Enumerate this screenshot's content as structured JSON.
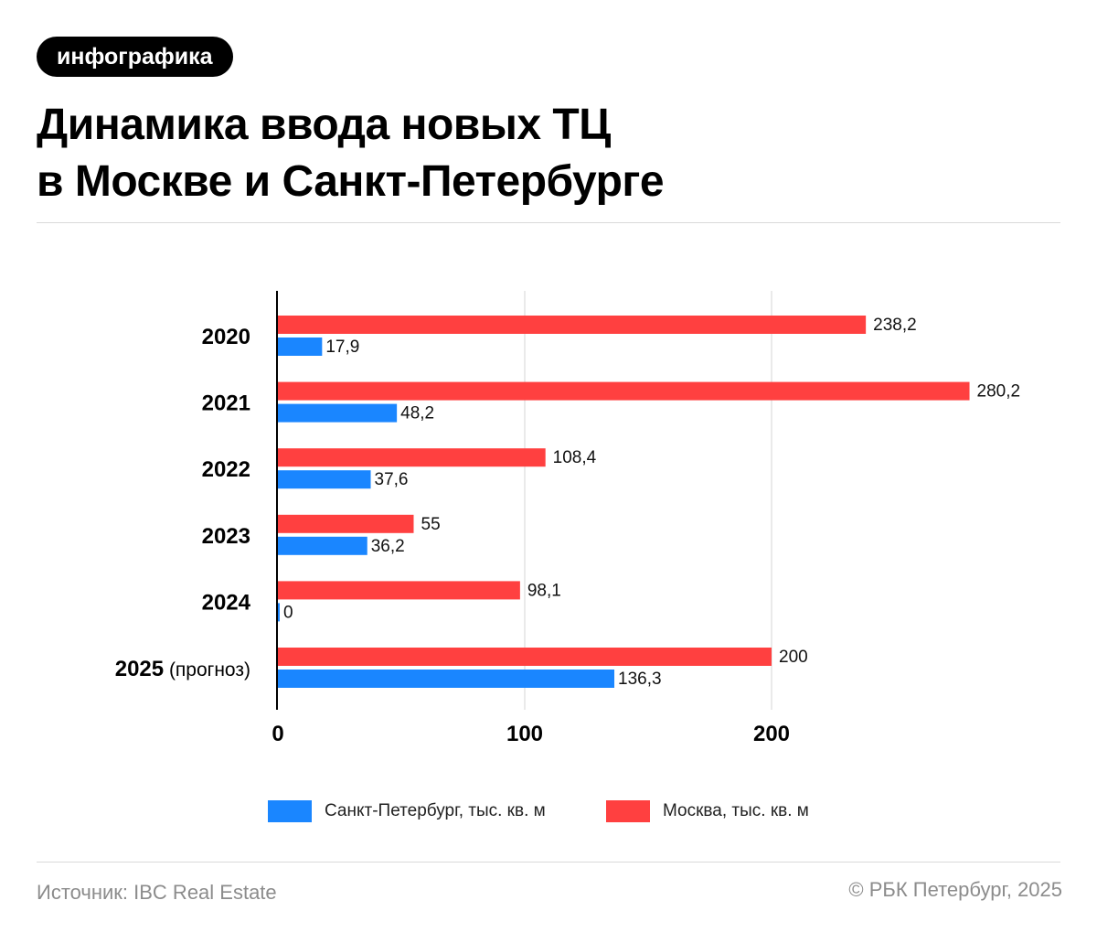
{
  "header": {
    "badge": "инфографика",
    "title_line1": "Динамика ввода новых ТЦ",
    "title_line2": "в Москве и Санкт-Петербурге"
  },
  "chart_data": {
    "type": "bar",
    "orientation": "horizontal",
    "categories": [
      {
        "year": "2020",
        "note": ""
      },
      {
        "year": "2021",
        "note": ""
      },
      {
        "year": "2022",
        "note": ""
      },
      {
        "year": "2023",
        "note": ""
      },
      {
        "year": "2024",
        "note": ""
      },
      {
        "year": "2025",
        "note": "(прогноз)"
      }
    ],
    "series": [
      {
        "name": "Москва, тыс. кв. м",
        "color": "#ff4040",
        "values": [
          238.2,
          280.2,
          108.4,
          55,
          98.1,
          200
        ],
        "labels": [
          "238,2",
          "280,2",
          "108,4",
          "55",
          "98,1",
          "200"
        ]
      },
      {
        "name": "Санкт-Петербург, тыс. кв. м",
        "color": "#1a86ff",
        "values": [
          17.9,
          48.2,
          37.6,
          36.2,
          0,
          136.3
        ],
        "labels": [
          "17,9",
          "48,2",
          "37,6",
          "36,2",
          "0",
          "136,3"
        ]
      }
    ],
    "xlim": [
      0,
      290
    ],
    "xticks": [
      0,
      100,
      200
    ],
    "grid": true,
    "legend_position": "bottom"
  },
  "legend": {
    "spb_label": "Санкт-Петербург, тыс. кв. м",
    "spb_color": "#1a86ff",
    "msk_label": "Москва, тыс. кв. м",
    "msk_color": "#ff4040"
  },
  "footer": {
    "source": "Источник: IBC Real Estate",
    "copyright": "© РБК Петербург, 2025"
  }
}
